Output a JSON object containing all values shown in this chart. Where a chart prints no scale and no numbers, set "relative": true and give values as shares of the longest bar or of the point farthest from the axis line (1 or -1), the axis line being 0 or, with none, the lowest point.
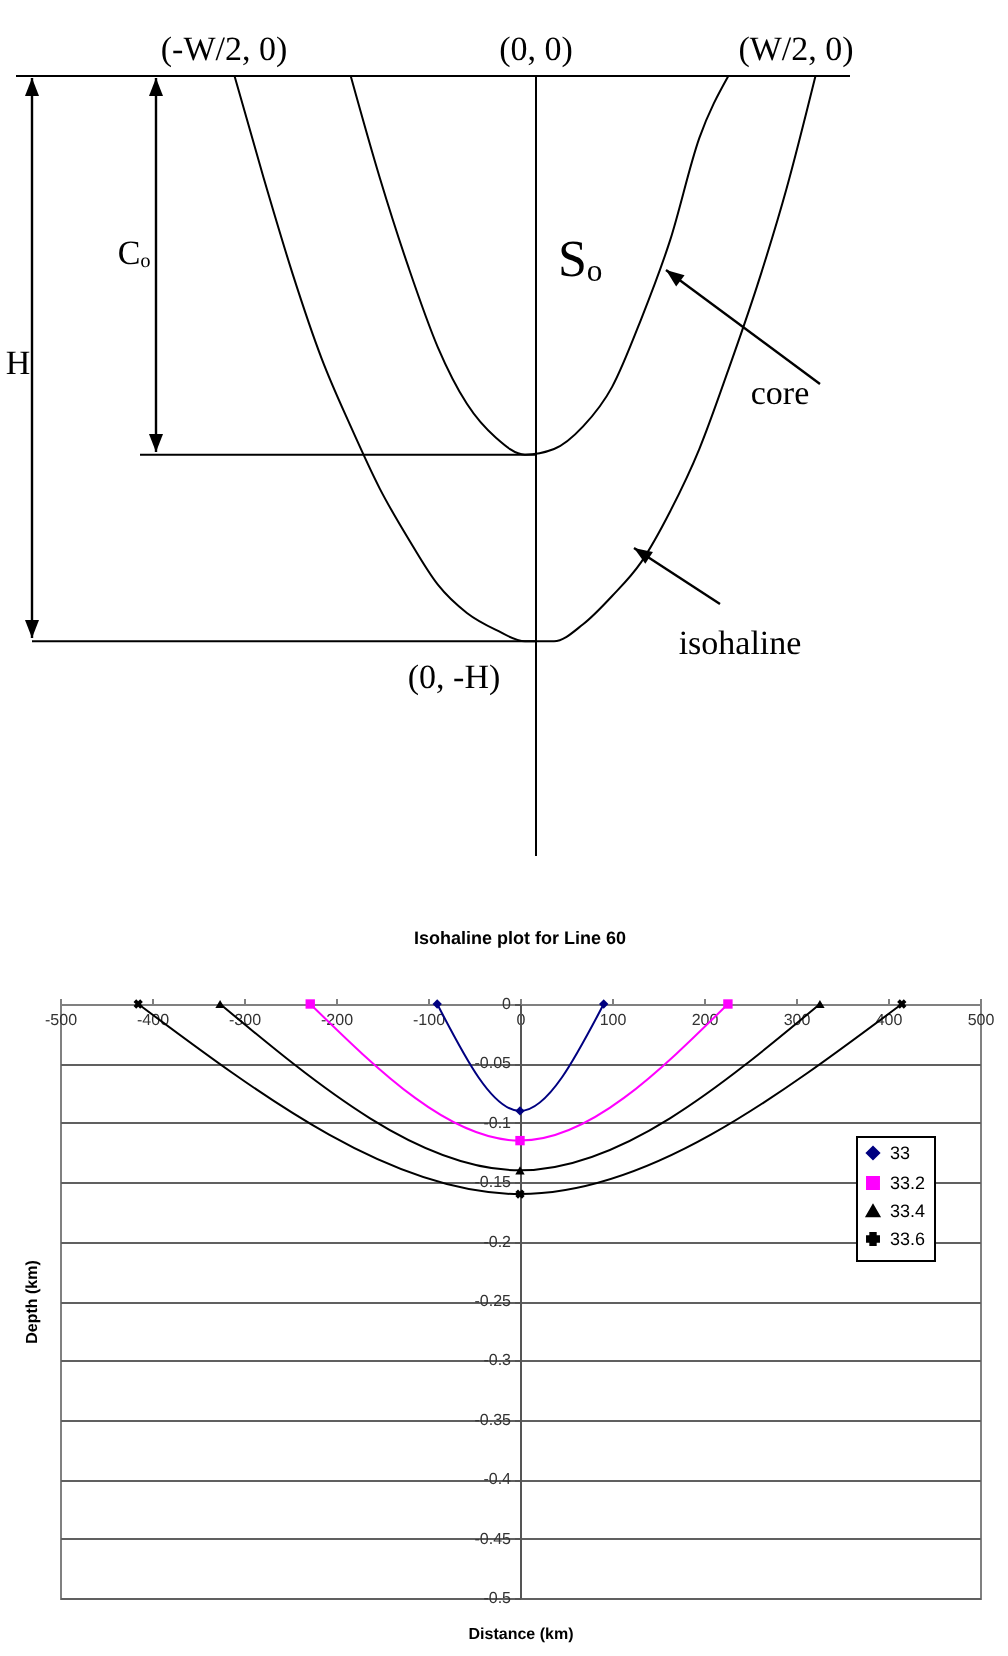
{
  "chart_data": [
    {
      "type": "line",
      "relative": true,
      "categories": [
        null,
        null,
        null,
        null,
        null,
        null,
        null,
        null,
        null,
        null,
        null,
        null,
        null,
        null,
        null,
        null,
        null,
        null,
        null,
        null,
        null
      ],
      "series": [
        {
          "name": "core",
          "color": "#000000",
          "values": [
            null,
            null,
            null,
            null,
            0,
            -0.18,
            -0.34,
            -0.48,
            -0.58,
            -0.64,
            -0.67,
            -0.66,
            -0.62,
            -0.55,
            -0.43,
            -0.29,
            -0.11,
            0,
            null,
            null,
            null
          ]
        },
        {
          "name": "isohaline",
          "color": "#000000",
          "values": [
            0,
            -0.18,
            -0.35,
            -0.5,
            -0.62,
            -0.73,
            -0.82,
            -0.9,
            -0.95,
            -0.98,
            -1,
            -1,
            -0.97,
            -0.92,
            -0.86,
            -0.77,
            -0.66,
            -0.52,
            -0.37,
            -0.2,
            0
          ]
        }
      ],
      "ref_lines": [
        {
          "axis": "y",
          "value": -0.67
        },
        {
          "axis": "y",
          "value": -1
        }
      ],
      "annotations": [
        "(-W/2, 0)",
        "(0, 0)",
        "(W/2, 0)",
        "Cₒ",
        "Sₒ",
        "H",
        "(0, -H)"
      ]
    },
    {
      "type": "line",
      "title": "Isohaline plot for Line 60",
      "xlabel": "Distance (km)",
      "ylabel": "Depth (km)",
      "series": [
        {
          "name": "33",
          "color": "#000080",
          "marker": "diamond",
          "x": [
            -90,
            0,
            91
          ],
          "values": [
            0,
            -0.09,
            0
          ]
        },
        {
          "name": "33.2",
          "color": "#ff00ff",
          "marker": "square",
          "x": [
            -228,
            0,
            226
          ],
          "values": [
            0,
            -0.115,
            0
          ]
        },
        {
          "name": "33.4",
          "color": "#000000",
          "marker": "triangle",
          "x": [
            -326,
            0,
            326
          ],
          "values": [
            0,
            -0.14,
            0
          ]
        },
        {
          "name": "33.6",
          "color": "#000000",
          "marker": "cross",
          "x": [
            -415,
            0,
            415
          ],
          "values": [
            0,
            -0.16,
            0
          ]
        }
      ],
      "xlim": [
        -500,
        500
      ],
      "xticks": [
        -500,
        -400,
        -300,
        -200,
        -100,
        0,
        100,
        200,
        300,
        400,
        500
      ],
      "ylim": [
        -0.5,
        0
      ],
      "yticks": [
        0,
        -0.05,
        -0.1,
        -0.15,
        -0.2,
        -0.25,
        -0.3,
        -0.35,
        -0.4,
        -0.45,
        -0.5
      ],
      "grid": "y",
      "legend": "right"
    }
  ]
}
